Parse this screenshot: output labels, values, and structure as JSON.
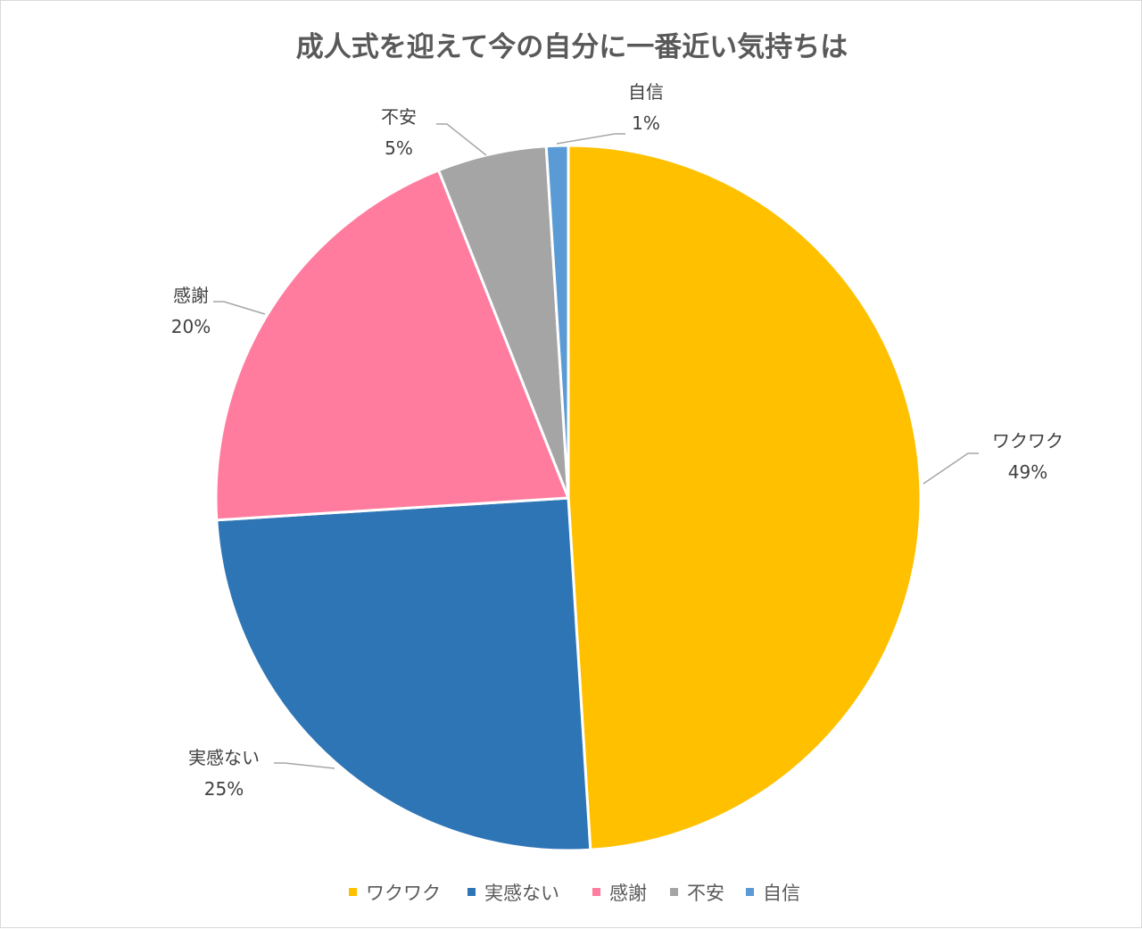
{
  "chart_data": {
    "type": "pie",
    "title": "成人式を迎えて今の自分に一番近い気持ちは",
    "slices": [
      {
        "label": "ワクワク",
        "value": 49,
        "display": "49%",
        "color": "#FFC000"
      },
      {
        "label": "実感ない",
        "value": 25,
        "display": "25%",
        "color": "#2E75B6"
      },
      {
        "label": "感謝",
        "value": 20,
        "display": "20%",
        "color": "#FF7C9F"
      },
      {
        "label": "不安",
        "value": 5,
        "display": "5%",
        "color": "#A5A5A5"
      },
      {
        "label": "自信",
        "value": 1,
        "display": "1%",
        "color": "#5B9BD5"
      }
    ],
    "legend_position": "bottom",
    "start_angle": "12 o'clock",
    "direction": "clockwise"
  }
}
